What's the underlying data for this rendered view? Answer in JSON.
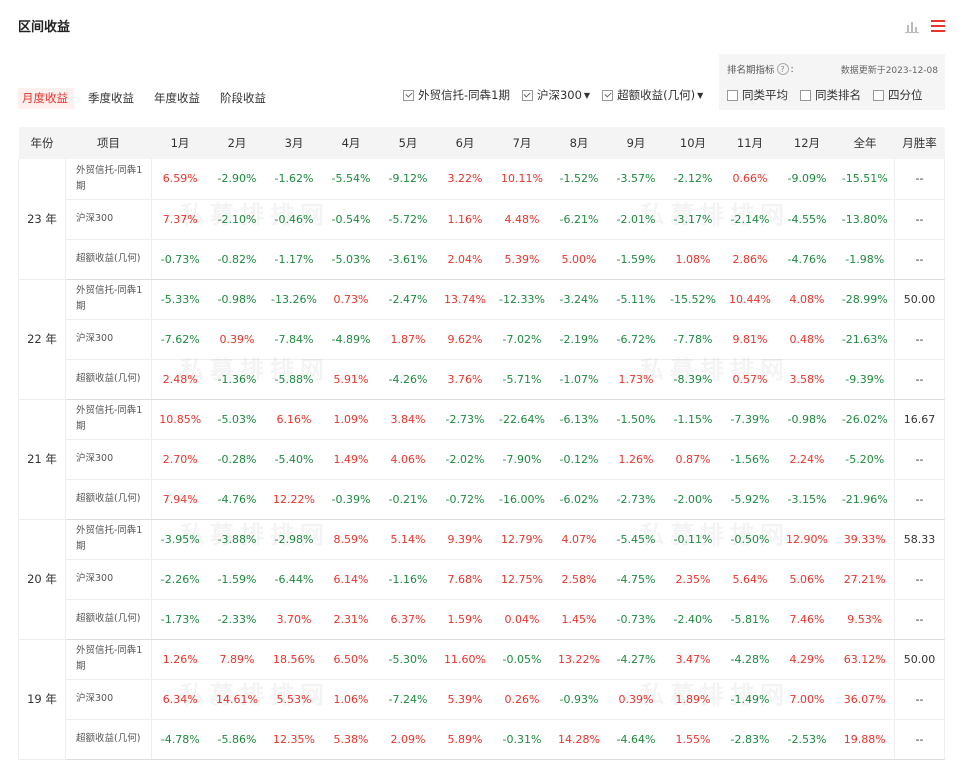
{
  "title": "区间收益",
  "icons": {
    "chart": "bar-chart-icon",
    "list": "menu-list-icon"
  },
  "accent_color": "#e8342b",
  "positive_color": "#e8342b",
  "negative_color": "#1c8a3e",
  "tabs": [
    {
      "label": "月度收益",
      "active": true
    },
    {
      "label": "季度收益",
      "active": false
    },
    {
      "label": "年度收益",
      "active": false
    },
    {
      "label": "阶段收益",
      "active": false
    }
  ],
  "filters": [
    {
      "label": "外贸信托-同犇1期",
      "checked": true,
      "dropdown": false
    },
    {
      "label": "沪深300",
      "checked": true,
      "dropdown": true
    },
    {
      "label": "超额收益(几何)",
      "checked": true,
      "dropdown": true
    }
  ],
  "rank": {
    "label": "排名期指标",
    "help": "?",
    "colon": ":",
    "update": "数据更新于2023-12-08",
    "options": [
      {
        "label": "同类平均",
        "checked": false
      },
      {
        "label": "同类排名",
        "checked": false
      },
      {
        "label": "四分位",
        "checked": false
      }
    ]
  },
  "table": {
    "headers": [
      "年份",
      "项目",
      "1月",
      "2月",
      "3月",
      "4月",
      "5月",
      "6月",
      "7月",
      "8月",
      "9月",
      "10月",
      "11月",
      "12月",
      "全年",
      "月胜率"
    ],
    "groups": [
      {
        "year": "23 年",
        "rows": [
          {
            "item": "外贸信托-同犇1期",
            "values": [
              "6.59%",
              "-2.90%",
              "-1.62%",
              "-5.54%",
              "-9.12%",
              "3.22%",
              "10.11%",
              "-1.52%",
              "-3.57%",
              "-2.12%",
              "0.66%",
              "-9.09%",
              "-15.51%"
            ],
            "win": "--"
          },
          {
            "item": "沪深300",
            "values": [
              "7.37%",
              "-2.10%",
              "-0.46%",
              "-0.54%",
              "-5.72%",
              "1.16%",
              "4.48%",
              "-6.21%",
              "-2.01%",
              "-3.17%",
              "-2.14%",
              "-4.55%",
              "-13.80%"
            ],
            "win": "--"
          },
          {
            "item": "超额收益(几何)",
            "values": [
              "-0.73%",
              "-0.82%",
              "-1.17%",
              "-5.03%",
              "-3.61%",
              "2.04%",
              "5.39%",
              "5.00%",
              "-1.59%",
              "1.08%",
              "2.86%",
              "-4.76%",
              "-1.98%"
            ],
            "win": "--"
          }
        ]
      },
      {
        "year": "22 年",
        "rows": [
          {
            "item": "外贸信托-同犇1期",
            "values": [
              "-5.33%",
              "-0.98%",
              "-13.26%",
              "0.73%",
              "-2.47%",
              "13.74%",
              "-12.33%",
              "-3.24%",
              "-5.11%",
              "-15.52%",
              "10.44%",
              "4.08%",
              "-28.99%"
            ],
            "win": "50.00"
          },
          {
            "item": "沪深300",
            "values": [
              "-7.62%",
              "0.39%",
              "-7.84%",
              "-4.89%",
              "1.87%",
              "9.62%",
              "-7.02%",
              "-2.19%",
              "-6.72%",
              "-7.78%",
              "9.81%",
              "0.48%",
              "-21.63%"
            ],
            "win": "--"
          },
          {
            "item": "超额收益(几何)",
            "values": [
              "2.48%",
              "-1.36%",
              "-5.88%",
              "5.91%",
              "-4.26%",
              "3.76%",
              "-5.71%",
              "-1.07%",
              "1.73%",
              "-8.39%",
              "0.57%",
              "3.58%",
              "-9.39%"
            ],
            "win": "--"
          }
        ]
      },
      {
        "year": "21 年",
        "rows": [
          {
            "item": "外贸信托-同犇1期",
            "values": [
              "10.85%",
              "-5.03%",
              "6.16%",
              "1.09%",
              "3.84%",
              "-2.73%",
              "-22.64%",
              "-6.13%",
              "-1.50%",
              "-1.15%",
              "-7.39%",
              "-0.98%",
              "-26.02%"
            ],
            "win": "16.67"
          },
          {
            "item": "沪深300",
            "values": [
              "2.70%",
              "-0.28%",
              "-5.40%",
              "1.49%",
              "4.06%",
              "-2.02%",
              "-7.90%",
              "-0.12%",
              "1.26%",
              "0.87%",
              "-1.56%",
              "2.24%",
              "-5.20%"
            ],
            "win": "--"
          },
          {
            "item": "超额收益(几何)",
            "values": [
              "7.94%",
              "-4.76%",
              "12.22%",
              "-0.39%",
              "-0.21%",
              "-0.72%",
              "-16.00%",
              "-6.02%",
              "-2.73%",
              "-2.00%",
              "-5.92%",
              "-3.15%",
              "-21.96%"
            ],
            "win": "--"
          }
        ]
      },
      {
        "year": "20 年",
        "rows": [
          {
            "item": "外贸信托-同犇1期",
            "values": [
              "-3.95%",
              "-3.88%",
              "-2.98%",
              "8.59%",
              "5.14%",
              "9.39%",
              "12.79%",
              "4.07%",
              "-5.45%",
              "-0.11%",
              "-0.50%",
              "12.90%",
              "39.33%"
            ],
            "win": "58.33"
          },
          {
            "item": "沪深300",
            "values": [
              "-2.26%",
              "-1.59%",
              "-6.44%",
              "6.14%",
              "-1.16%",
              "7.68%",
              "12.75%",
              "2.58%",
              "-4.75%",
              "2.35%",
              "5.64%",
              "5.06%",
              "27.21%"
            ],
            "win": "--"
          },
          {
            "item": "超额收益(几何)",
            "values": [
              "-1.73%",
              "-2.33%",
              "3.70%",
              "2.31%",
              "6.37%",
              "1.59%",
              "0.04%",
              "1.45%",
              "-0.73%",
              "-2.40%",
              "-5.81%",
              "7.46%",
              "9.53%"
            ],
            "win": "--"
          }
        ]
      },
      {
        "year": "19 年",
        "rows": [
          {
            "item": "外贸信托-同犇1期",
            "values": [
              "1.26%",
              "7.89%",
              "18.56%",
              "6.50%",
              "-5.30%",
              "11.60%",
              "-0.05%",
              "13.22%",
              "-4.27%",
              "3.47%",
              "-4.28%",
              "4.29%",
              "63.12%"
            ],
            "win": "50.00"
          },
          {
            "item": "沪深300",
            "values": [
              "6.34%",
              "14.61%",
              "5.53%",
              "1.06%",
              "-7.24%",
              "5.39%",
              "0.26%",
              "-0.93%",
              "0.39%",
              "1.89%",
              "-1.49%",
              "7.00%",
              "36.07%"
            ],
            "win": "--"
          },
          {
            "item": "超额收益(几何)",
            "values": [
              "-4.78%",
              "-5.86%",
              "12.35%",
              "5.38%",
              "2.09%",
              "5.89%",
              "-0.31%",
              "14.28%",
              "-4.64%",
              "1.55%",
              "-2.83%",
              "-2.53%",
              "19.88%"
            ],
            "win": "--"
          }
        ]
      }
    ]
  },
  "watermark": "私募排排网"
}
